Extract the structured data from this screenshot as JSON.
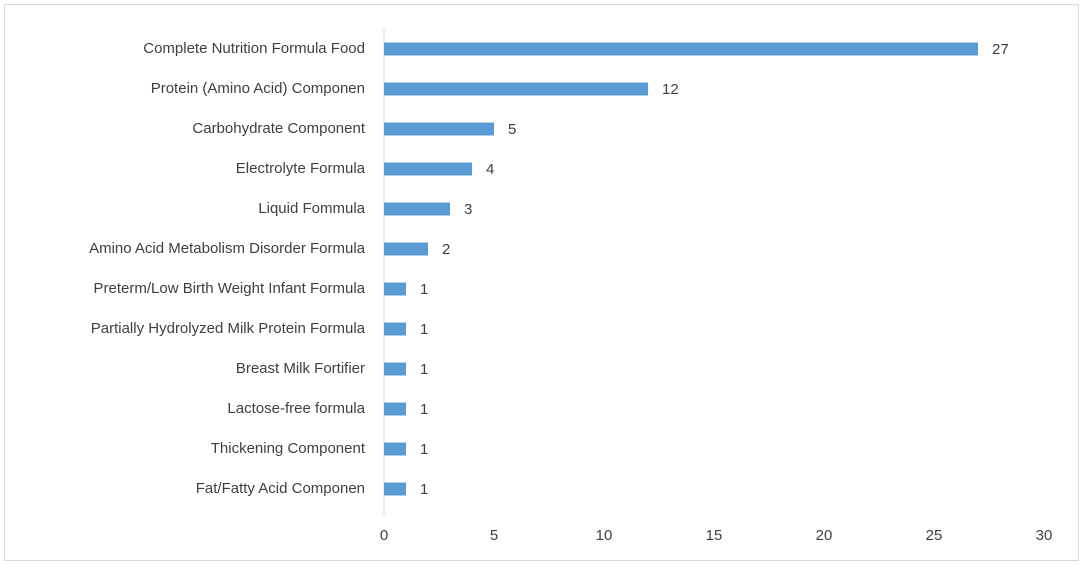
{
  "chart_data": {
    "type": "bar",
    "orientation": "horizontal",
    "categories": [
      "Complete Nutrition Formula Food",
      "Protein (Amino Acid) Componen",
      "Carbohydrate Component",
      "Electrolyte Formula",
      "Liquid Fommula",
      "Amino Acid Metabolism Disorder Formula",
      "Preterm/Low Birth Weight Infant Formula",
      "Partially Hydrolyzed Milk Protein Formula",
      "Breast Milk Fortifier",
      "Lactose-free formula",
      "Thickening Component",
      "Fat/Fatty Acid Componen"
    ],
    "values": [
      27,
      12,
      5,
      4,
      3,
      2,
      1,
      1,
      1,
      1,
      1,
      1
    ],
    "color": "#5b9bd5",
    "xlim": [
      0,
      30
    ],
    "xticks": [
      0,
      5,
      10,
      15,
      20,
      25,
      30
    ],
    "grid": false
  }
}
